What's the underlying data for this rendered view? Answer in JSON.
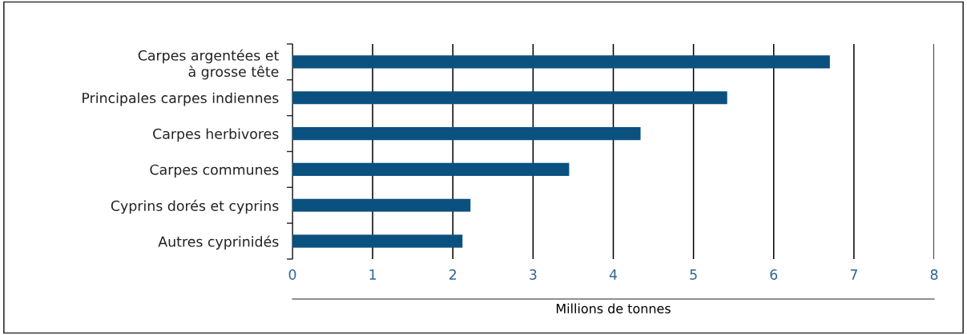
{
  "chart_data": {
    "type": "bar",
    "orientation": "horizontal",
    "categories": [
      "Carpes argentées et\nà grosse tête",
      "Principales carpes indiennes",
      "Carpes herbivores",
      "Carpes communes",
      "Cyprins dorés et cyprins",
      "Autres cyprinidés"
    ],
    "values": [
      6.7,
      5.42,
      4.34,
      3.45,
      2.22,
      2.12
    ],
    "color": "#0b5180",
    "xlabel": "Millions de tonnes",
    "xlim": [
      0,
      8
    ],
    "xticks": [
      0,
      1,
      2,
      3,
      4,
      5,
      6,
      7,
      8
    ],
    "grid": "x"
  }
}
